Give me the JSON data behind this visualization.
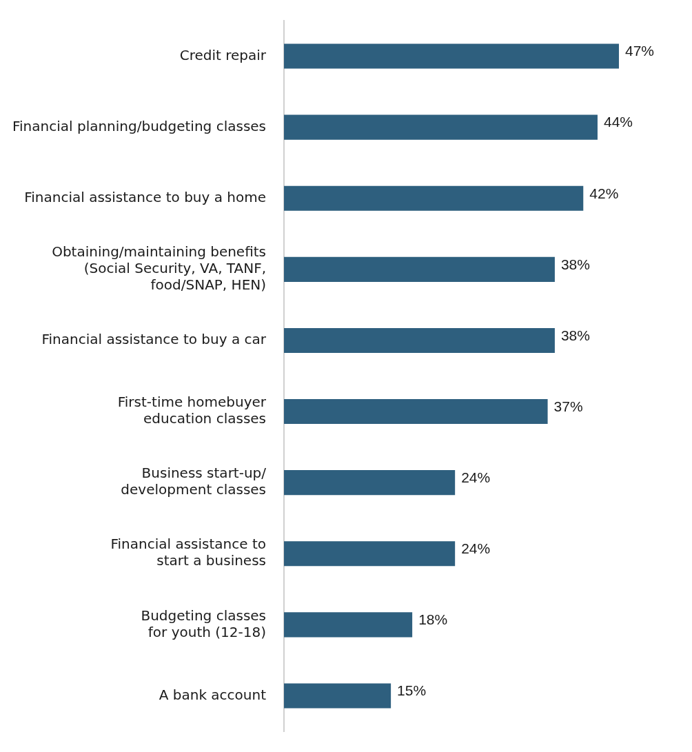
{
  "chart_data": {
    "type": "bar",
    "orientation": "horizontal",
    "categories": [
      "Credit repair",
      "Financial planning/budgeting classes",
      "Financial assistance to buy a home",
      "Obtaining/maintaining benefits\n(Social Security, VA, TANF,\nfood/SNAP, HEN)",
      "Financial assistance to buy a car",
      "First-time homebuyer\neducation classes",
      "Business start-up/\ndevelopment classes",
      "Financial assistance to\nstart a business",
      "Budgeting classes\nfor youth (12-18)",
      "A bank account"
    ],
    "values": [
      47,
      44,
      42,
      38,
      38,
      37,
      24,
      24,
      18,
      15
    ],
    "value_labels": [
      "47%",
      "44%",
      "42%",
      "38%",
      "38%",
      "37%",
      "24%",
      "24%",
      "18%",
      "15%"
    ],
    "color": "#2e5f7e",
    "tick_labels": "y",
    "grid": false,
    "legend": false
  }
}
